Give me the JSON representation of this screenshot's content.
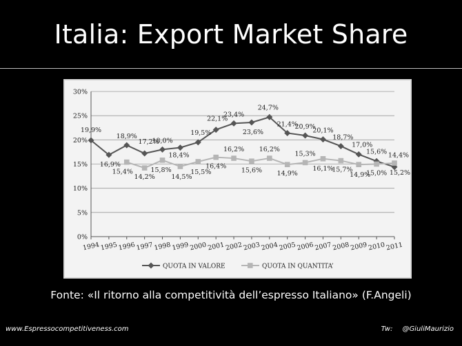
{
  "slide": {
    "title": "Italia: Export Market Share",
    "source": "Fonte: «Il ritorno alla competitività dell’espresso Italiano» (F.Angeli)",
    "footer_left": "www.Espressocompetitiveness.com",
    "footer_right_label": "Tw:",
    "footer_right_handle": "@GiuliMaurizio"
  },
  "chart_data": {
    "type": "line",
    "categories": [
      "1994",
      "1995",
      "1996",
      "1997",
      "1998",
      "1999",
      "2000",
      "2001",
      "2002",
      "2003",
      "2004",
      "2005",
      "2006",
      "2007",
      "2008",
      "2009",
      "2010",
      "2011"
    ],
    "ylim": [
      0,
      30
    ],
    "yticks": [
      "0%",
      "5%",
      "10%",
      "15%",
      "20%",
      "25%",
      "30%"
    ],
    "grid": true,
    "legend_position": "bottom",
    "series": [
      {
        "name": "QUOTA IN VALORE",
        "color": "#555555",
        "marker": "diamond",
        "values": [
          19.9,
          16.9,
          18.9,
          17.2,
          18.0,
          18.4,
          19.5,
          22.1,
          23.4,
          23.6,
          24.7,
          21.4,
          20.9,
          20.1,
          18.7,
          17.0,
          15.6,
          14.4
        ],
        "labels": [
          "19,9%",
          "16,9%",
          "18,9%",
          "17,2%",
          "18,0%",
          "18,4%",
          "19,5%",
          "22,1%",
          "23,4%",
          "23,6%",
          "24,7%",
          "21,4%",
          "20,9%",
          "20,1%",
          "18,7%",
          "17,0%",
          "15,6%",
          "14,4%"
        ]
      },
      {
        "name": "QUOTA IN QUANTITA’",
        "color": "#b5b5b5",
        "marker": "square",
        "values": [
          null,
          null,
          15.4,
          14.2,
          15.8,
          14.5,
          15.5,
          16.4,
          16.2,
          15.6,
          16.2,
          14.9,
          15.3,
          16.1,
          15.7,
          14.9,
          15.0,
          15.2
        ],
        "labels": [
          null,
          null,
          "15,4%",
          "14,2%",
          "15,8%",
          "14,5%",
          "15,5%",
          "16,4%",
          "16,2%",
          "15,6%",
          "16,2%",
          "14,9%",
          "15,3%",
          "16,1%",
          "15,7%",
          "14,9%",
          "15,0%",
          "15,2%"
        ]
      }
    ]
  }
}
